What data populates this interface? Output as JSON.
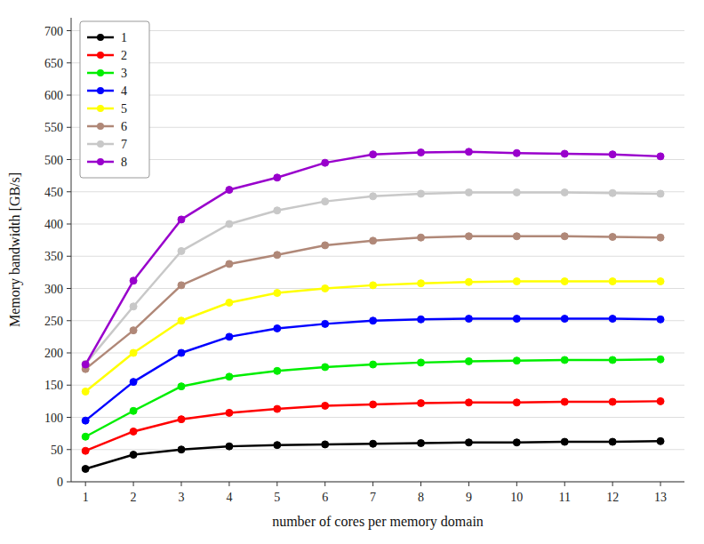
{
  "chart_data": {
    "type": "line",
    "xlabel": "number of cores per memory domain",
    "ylabel": "Memory bandwidth [GB/s]",
    "x": [
      1,
      2,
      3,
      4,
      5,
      6,
      7,
      8,
      9,
      10,
      11,
      12,
      13
    ],
    "series": [
      {
        "name": "1",
        "color": "#000000",
        "values": [
          20,
          42,
          50,
          55,
          57,
          58,
          59,
          60,
          61,
          61,
          62,
          62,
          63
        ]
      },
      {
        "name": "2",
        "color": "#ff0000",
        "values": [
          48,
          78,
          97,
          107,
          113,
          118,
          120,
          122,
          123,
          123,
          124,
          124,
          125
        ]
      },
      {
        "name": "3",
        "color": "#00ee00",
        "values": [
          70,
          110,
          148,
          163,
          172,
          178,
          182,
          185,
          187,
          188,
          189,
          189,
          190
        ]
      },
      {
        "name": "4",
        "color": "#0000ff",
        "values": [
          95,
          155,
          200,
          225,
          238,
          245,
          250,
          252,
          253,
          253,
          253,
          253,
          252
        ]
      },
      {
        "name": "5",
        "color": "#ffff00",
        "values": [
          140,
          200,
          250,
          278,
          293,
          300,
          305,
          308,
          310,
          311,
          311,
          311,
          311
        ]
      },
      {
        "name": "6",
        "color": "#b08878",
        "values": [
          175,
          235,
          305,
          338,
          352,
          367,
          374,
          379,
          381,
          381,
          381,
          380,
          379
        ]
      },
      {
        "name": "7",
        "color": "#c8c8c8",
        "values": [
          183,
          272,
          358,
          400,
          421,
          435,
          443,
          447,
          449,
          449,
          449,
          448,
          447
        ]
      },
      {
        "name": "8",
        "color": "#9900cc",
        "values": [
          182,
          312,
          407,
          453,
          472,
          495,
          508,
          511,
          512,
          510,
          509,
          508,
          505
        ]
      }
    ],
    "xlim": [
      0.7,
      13.5
    ],
    "xticks": [
      1,
      2,
      3,
      4,
      5,
      6,
      7,
      8,
      9,
      10,
      11,
      12,
      13
    ],
    "ylim": [
      0,
      720
    ],
    "yticks": [
      0,
      50,
      100,
      150,
      200,
      250,
      300,
      350,
      400,
      450,
      500,
      550,
      600,
      650,
      700
    ],
    "grid": true,
    "legend": "upper left",
    "marker": "circle"
  }
}
